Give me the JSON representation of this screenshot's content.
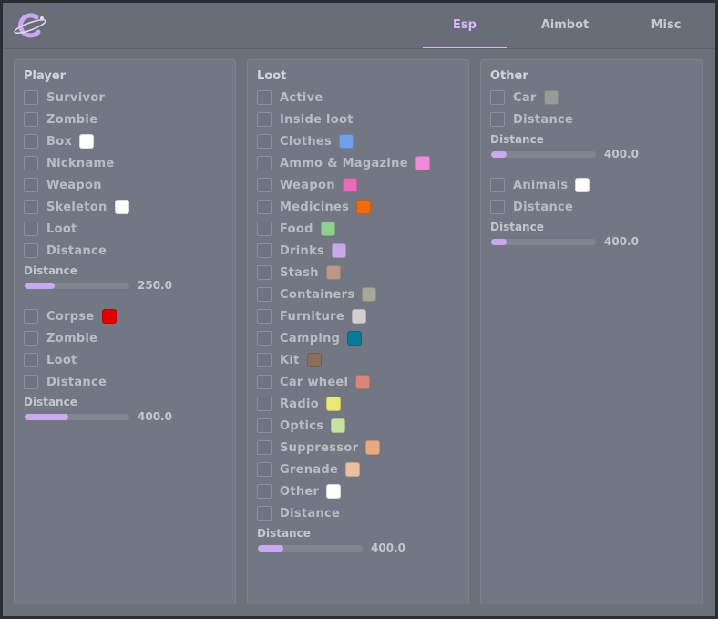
{
  "tabs": [
    "Esp",
    "Aimbot",
    "Misc"
  ],
  "panels": [
    {
      "title": "Player",
      "items": [
        {
          "label": "Survivor"
        },
        {
          "label": "Zombie"
        },
        {
          "label": "Box",
          "color": "#ffffff"
        },
        {
          "label": "Nickname"
        },
        {
          "label": "Weapon"
        },
        {
          "label": "Skeleton",
          "color": "#ffffff"
        },
        {
          "label": "Loot"
        },
        {
          "label": "Distance"
        },
        {
          "label": "Distance",
          "value": "250.0"
        },
        {
          "label": "Corpse",
          "color": "#e00000"
        },
        {
          "label": "Zombie"
        },
        {
          "label": "Loot"
        },
        {
          "label": "Distance"
        },
        {
          "label": "Distance",
          "value": "400.0"
        }
      ]
    },
    {
      "title": "Loot",
      "items": [
        {
          "label": "Active"
        },
        {
          "label": "Inside loot"
        },
        {
          "label": "Clothes",
          "color": "#6fa0e8"
        },
        {
          "label": "Ammo & Magazine",
          "color": "#f08ad8"
        },
        {
          "label": "Weapon",
          "color": "#e86ab8"
        },
        {
          "label": "Medicines",
          "color": "#f06a14"
        },
        {
          "label": "Food",
          "color": "#8fd08f"
        },
        {
          "label": "Drinks",
          "color": "#c8a8e8"
        },
        {
          "label": "Stash",
          "color": "#b8988a"
        },
        {
          "label": "Containers",
          "color": "#a8a898"
        },
        {
          "label": "Furniture",
          "color": "#d0d0d0"
        },
        {
          "label": "Camping",
          "color": "#0a7a9a"
        },
        {
          "label": "Kit",
          "color": "#8a6e58"
        },
        {
          "label": "Car wheel",
          "color": "#d88878"
        },
        {
          "label": "Radio",
          "color": "#e8e878"
        },
        {
          "label": "Optics",
          "color": "#c8e0a0"
        },
        {
          "label": "Suppressor",
          "color": "#e8a880"
        },
        {
          "label": "Grenade",
          "color": "#e8c0a0"
        },
        {
          "label": "Other",
          "color": "#ffffff"
        },
        {
          "label": "Distance"
        },
        {
          "label": "Distance",
          "value": "400.0"
        }
      ]
    },
    {
      "title": "Other",
      "items": [
        {
          "label": "Car",
          "color": "#9a9a9a"
        },
        {
          "label": "Distance"
        },
        {
          "label": "Distance",
          "value": "400.0"
        },
        {
          "label": "Animals",
          "color": "#ffffff"
        },
        {
          "label": "Distance"
        },
        {
          "label": "Distance",
          "value": "400.0"
        }
      ]
    }
  ]
}
